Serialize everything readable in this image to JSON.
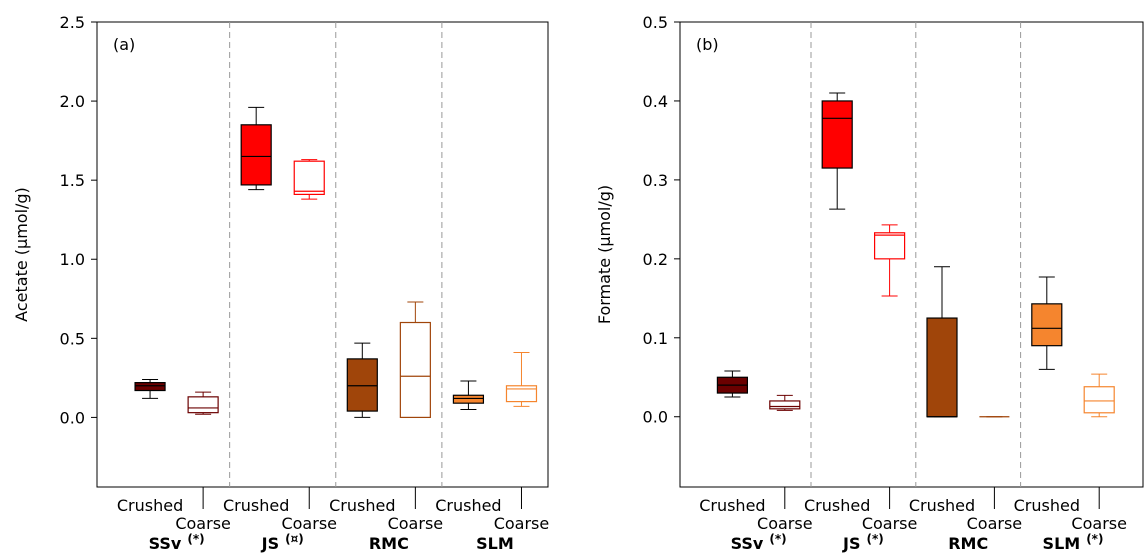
{
  "chart_data": [
    {
      "type": "box",
      "panel_label": "(a)",
      "y_label": "Acetate (µmol/g)",
      "ylim": [
        -0.44,
        2.5
      ],
      "yticks": [
        {
          "value": 0,
          "label": "0.0"
        },
        0.5,
        {
          "value": 1,
          "label": "1.0"
        },
        1.5,
        {
          "value": 2,
          "label": "2.0"
        },
        2.5
      ],
      "groups": [
        {
          "name": "SSv",
          "note": "(*)",
          "color": "#6b0000"
        },
        {
          "name": "JS",
          "note": "(¤)",
          "color": "#ff0000"
        },
        {
          "name": "RMC",
          "note": null,
          "color": "#a0450a"
        },
        {
          "name": "SLM",
          "note": null,
          "color": "#f5852e"
        }
      ],
      "categories": [
        "Crushed",
        "Coarse",
        "Crushed",
        "Coarse",
        "Crushed",
        "Coarse",
        "Crushed",
        "Coarse"
      ],
      "filled": [
        true,
        false,
        true,
        false,
        true,
        false,
        true,
        false
      ],
      "boxes": [
        {
          "min": 0.12,
          "q1": 0.17,
          "median": 0.2,
          "q3": 0.22,
          "max": 0.24
        },
        {
          "min": 0.02,
          "q1": 0.03,
          "median": 0.06,
          "q3": 0.13,
          "max": 0.16
        },
        {
          "min": 1.44,
          "q1": 1.47,
          "median": 1.65,
          "q3": 1.85,
          "max": 1.96
        },
        {
          "min": 1.38,
          "q1": 1.41,
          "median": 1.43,
          "q3": 1.62,
          "max": 1.63
        },
        {
          "min": 0.0,
          "q1": 0.04,
          "median": 0.2,
          "q3": 0.37,
          "max": 0.47
        },
        {
          "min": 0.0,
          "q1": 0.0,
          "median": 0.26,
          "q3": 0.6,
          "max": 0.73
        },
        {
          "min": 0.05,
          "q1": 0.09,
          "median": 0.12,
          "q3": 0.14,
          "max": 0.23
        },
        {
          "min": 0.07,
          "q1": 0.1,
          "median": 0.18,
          "q3": 0.2,
          "max": 0.41
        }
      ]
    },
    {
      "type": "box",
      "panel_label": "(b)",
      "y_label": "Formate (µmol/g)",
      "ylim": [
        -0.089,
        0.5
      ],
      "yticks": [
        {
          "value": 0,
          "label": "0.0"
        },
        0.1,
        0.2,
        0.3,
        0.4,
        0.5
      ],
      "groups": [
        {
          "name": "SSv",
          "note": "(*)",
          "color": "#6b0000"
        },
        {
          "name": "JS",
          "note": "(*)",
          "color": "#ff0000"
        },
        {
          "name": "RMC",
          "note": null,
          "color": "#a0450a"
        },
        {
          "name": "SLM",
          "note": "(*)",
          "color": "#f5852e"
        }
      ],
      "categories": [
        "Crushed",
        "Coarse",
        "Crushed",
        "Coarse",
        "Crushed",
        "Coarse",
        "Crushed",
        "Coarse"
      ],
      "filled": [
        true,
        false,
        true,
        false,
        true,
        false,
        true,
        false
      ],
      "boxes": [
        {
          "min": 0.025,
          "q1": 0.03,
          "median": 0.04,
          "q3": 0.05,
          "max": 0.058
        },
        {
          "min": 0.008,
          "q1": 0.01,
          "median": 0.013,
          "q3": 0.02,
          "max": 0.027
        },
        {
          "min": 0.263,
          "q1": 0.315,
          "median": 0.378,
          "q3": 0.4,
          "max": 0.41
        },
        {
          "min": 0.153,
          "q1": 0.2,
          "median": 0.23,
          "q3": 0.233,
          "max": 0.243
        },
        {
          "min": 0,
          "q1": 0,
          "median": 0,
          "q3": 0.125,
          "max": 0.19
        },
        {
          "min": 0,
          "q1": 0,
          "median": 0,
          "q3": 0,
          "max": 0
        },
        {
          "min": 0.06,
          "q1": 0.09,
          "median": 0.112,
          "q3": 0.143,
          "max": 0.177
        },
        {
          "min": 0,
          "q1": 0.005,
          "median": 0.02,
          "q3": 0.038,
          "max": 0.054
        }
      ]
    }
  ]
}
